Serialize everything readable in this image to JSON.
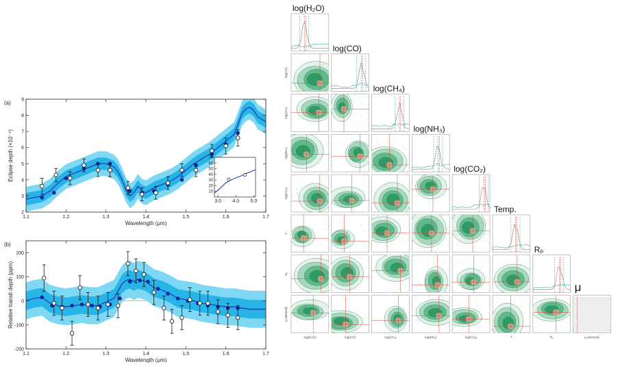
{
  "chart_data": [
    {
      "panel": "(a)",
      "type": "line",
      "xlabel": "Wavelength (μm)",
      "ylabel": "Eclipse depth (×10⁻⁴)",
      "xlim": [
        1.1,
        1.7
      ],
      "ylim": [
        2,
        9
      ],
      "xticks": [
        "1.1",
        "1.2",
        "1.3",
        "1.4",
        "1.5",
        "1.6",
        "1.7"
      ],
      "yticks": [
        "2",
        "3",
        "4",
        "5",
        "6",
        "7",
        "8",
        "9"
      ],
      "model_x": [
        1.1,
        1.12,
        1.14,
        1.16,
        1.18,
        1.2,
        1.22,
        1.24,
        1.26,
        1.28,
        1.3,
        1.32,
        1.33,
        1.34,
        1.35,
        1.36,
        1.37,
        1.38,
        1.39,
        1.4,
        1.42,
        1.44,
        1.46,
        1.48,
        1.5,
        1.52,
        1.54,
        1.56,
        1.58,
        1.6,
        1.62,
        1.63,
        1.64,
        1.65,
        1.66,
        1.67,
        1.68,
        1.7
      ],
      "model_y": [
        2.8,
        2.9,
        3.0,
        3.3,
        3.8,
        4.2,
        4.4,
        4.6,
        4.8,
        5.0,
        5.0,
        4.8,
        4.5,
        4.0,
        3.4,
        3.0,
        3.2,
        3.6,
        3.3,
        3.2,
        3.5,
        3.7,
        3.9,
        4.2,
        4.6,
        5.0,
        5.3,
        5.6,
        6.0,
        6.4,
        6.8,
        7.4,
        8.1,
        8.4,
        8.5,
        8.3,
        7.9,
        7.6
      ],
      "band_halfwidth": 0.35,
      "model_binned": {
        "x": [
          1.14,
          1.17,
          1.2,
          1.245,
          1.28,
          1.31,
          1.36,
          1.39,
          1.42,
          1.455,
          1.49,
          1.525,
          1.565,
          1.6,
          1.63
        ],
        "y": [
          2.9,
          3.2,
          4.1,
          4.7,
          5.0,
          5.0,
          3.3,
          3.2,
          3.3,
          3.7,
          4.0,
          4.9,
          5.6,
          6.2,
          6.9
        ]
      },
      "observed": {
        "x": [
          1.14,
          1.175,
          1.21,
          1.245,
          1.28,
          1.31,
          1.355,
          1.39,
          1.425,
          1.455,
          1.49,
          1.525,
          1.565,
          1.6,
          1.63
        ],
        "y": [
          3.6,
          4.3,
          4.1,
          4.9,
          4.6,
          4.6,
          3.5,
          3.1,
          3.2,
          3.8,
          4.6,
          4.6,
          5.8,
          6.1,
          6.6
        ],
        "err": [
          0.5,
          0.4,
          0.4,
          0.4,
          0.4,
          0.4,
          0.4,
          0.4,
          0.4,
          0.4,
          0.4,
          0.4,
          0.4,
          0.5,
          0.5
        ]
      },
      "inset": {
        "xlim": [
          2.8,
          5.1
        ],
        "ylim": [
          0,
          70
        ],
        "xticks": [
          "3.0",
          "4.0",
          "5.0"
        ],
        "yticks": [
          "10",
          "20",
          "30",
          "40",
          "50",
          "60",
          "70"
        ],
        "model_x": [
          2.8,
          3.0,
          3.2,
          3.4,
          3.6,
          3.8,
          4.0,
          4.2,
          4.4,
          4.6,
          4.8,
          5.0,
          5.1
        ],
        "model_y": [
          7,
          12,
          18,
          24,
          28,
          31,
          34,
          36,
          39,
          42,
          44,
          47,
          48
        ],
        "observed": {
          "x": [
            3.6,
            4.5
          ],
          "y": [
            31,
            39
          ]
        }
      }
    },
    {
      "panel": "(b)",
      "type": "line",
      "xlabel": "Wavelength (μm)",
      "ylabel": "Relative transit depth (ppm)",
      "xlim": [
        1.1,
        1.7
      ],
      "ylim": [
        -200,
        250
      ],
      "xticks": [
        "1.1",
        "1.2",
        "1.3",
        "1.4",
        "1.5",
        "1.6",
        "1.7"
      ],
      "yticks": [
        "-200",
        "-100",
        "0",
        "100",
        "200"
      ],
      "model_x": [
        1.1,
        1.12,
        1.14,
        1.16,
        1.18,
        1.2,
        1.22,
        1.24,
        1.26,
        1.28,
        1.3,
        1.32,
        1.33,
        1.34,
        1.35,
        1.36,
        1.37,
        1.38,
        1.39,
        1.4,
        1.42,
        1.44,
        1.46,
        1.48,
        1.5,
        1.52,
        1.54,
        1.56,
        1.58,
        1.6,
        1.62,
        1.64,
        1.66,
        1.68,
        1.7
      ],
      "model_y": [
        0,
        10,
        15,
        -10,
        -20,
        -25,
        -20,
        -15,
        -20,
        -20,
        -5,
        10,
        40,
        70,
        85,
        90,
        80,
        90,
        85,
        80,
        55,
        45,
        30,
        10,
        5,
        0,
        -10,
        -15,
        -20,
        -25,
        -25,
        -30,
        -35,
        -35,
        -35
      ],
      "band_halfwidth": 35,
      "model_binned": {
        "x": [
          1.14,
          1.165,
          1.19,
          1.215,
          1.24,
          1.265,
          1.285,
          1.31,
          1.335,
          1.36,
          1.385,
          1.405,
          1.43,
          1.455,
          1.48,
          1.505,
          1.53,
          1.555,
          1.58,
          1.605,
          1.63
        ],
        "y": [
          15,
          -20,
          -25,
          -20,
          -15,
          -20,
          -25,
          -15,
          10,
          80,
          85,
          80,
          50,
          30,
          10,
          0,
          -10,
          -20,
          -25,
          -30,
          -30
        ]
      },
      "observed": {
        "x": [
          1.145,
          1.17,
          1.19,
          1.215,
          1.235,
          1.255,
          1.28,
          1.305,
          1.33,
          1.355,
          1.375,
          1.395,
          1.42,
          1.445,
          1.465,
          1.49,
          1.51,
          1.535,
          1.555,
          1.58,
          1.605,
          1.63
        ],
        "y": [
          95,
          -10,
          -30,
          -135,
          55,
          -15,
          -30,
          -15,
          -20,
          155,
          125,
          110,
          35,
          -30,
          -85,
          -70,
          5,
          -10,
          -10,
          -45,
          -60,
          -70
        ],
        "err": [
          55,
          50,
          50,
          50,
          50,
          50,
          50,
          50,
          50,
          50,
          50,
          50,
          50,
          50,
          50,
          50,
          50,
          50,
          50,
          50,
          50,
          50
        ]
      }
    },
    {
      "type": "corner",
      "parameters": [
        "log(H₂O)",
        "log(CO)",
        "log(CH₄)",
        "log(NH₃)",
        "log(CO₂)",
        "Temp.",
        "Rₚ",
        "μ"
      ],
      "axis_labels": [
        "log(H₂O)",
        "log(CO)",
        "log(CH₄)",
        "log(NH₃)",
        "log(CO₂)",
        "T",
        "Rₚ",
        "μ (derived)"
      ]
    }
  ]
}
